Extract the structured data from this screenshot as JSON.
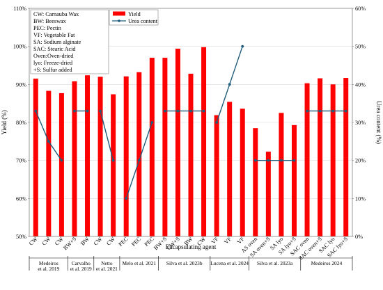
{
  "chart_data": {
    "type": "bar",
    "xlabel": "Encapsulating agent",
    "ylabel_left": "Yield (%)",
    "ylabel_right": "Urea content (%)",
    "ylim_left": [
      50,
      110
    ],
    "ylim_right": [
      0,
      60
    ],
    "yticks_left": [
      "50%",
      "60%",
      "70%",
      "80%",
      "90%",
      "100%",
      "110%"
    ],
    "yticks_right": [
      "0%",
      "10%",
      "20%",
      "30%",
      "40%",
      "50%",
      "60%"
    ],
    "categories": [
      "CW",
      "CW",
      "CW",
      "BW+S",
      "BW",
      "CW",
      "CW",
      "PEC",
      "PEC",
      "PEC",
      "BW+S",
      "CW+S",
      "BW",
      "CW",
      "VF",
      "VF",
      "VF",
      "AS oven",
      "SA oven+S",
      "SA lyo",
      "SA lyo+S",
      "SAC oven",
      "SAC oven+S",
      "SAC lyo",
      "SAC lyo+S"
    ],
    "series": [
      {
        "name": "Yield",
        "type": "bar",
        "color": "#ff0000",
        "values": [
          91.5,
          88.3,
          87.7,
          90.8,
          92.4,
          92.0,
          87.4,
          92.1,
          93.2,
          97.0,
          97.0,
          99.4,
          92.8,
          99.8,
          81.9,
          85.4,
          83.6,
          78.5,
          72.3,
          82.5,
          79.3,
          90.3,
          91.6,
          90.0,
          91.7
        ]
      },
      {
        "name": "Urea content",
        "type": "line",
        "color": "#1f5c7a",
        "segments": [
          [
            [
              0,
              33
            ],
            [
              1,
              25
            ],
            [
              2,
              20
            ]
          ],
          [
            [
              3,
              33
            ],
            [
              4,
              33
            ]
          ],
          [
            [
              5,
              33
            ],
            [
              6,
              20
            ]
          ],
          [
            [
              7,
              10
            ],
            [
              8,
              20
            ],
            [
              9,
              30
            ]
          ],
          [
            [
              10,
              33
            ],
            [
              11,
              33
            ],
            [
              12,
              33
            ],
            [
              13,
              33
            ]
          ],
          [
            [
              14,
              30
            ],
            [
              15,
              40
            ],
            [
              16,
              50
            ]
          ],
          [
            [
              17,
              20
            ],
            [
              18,
              20
            ],
            [
              19,
              20
            ],
            [
              20,
              20
            ]
          ],
          [
            [
              21,
              33
            ],
            [
              22,
              33
            ],
            [
              23,
              33
            ],
            [
              24,
              33
            ]
          ]
        ]
      }
    ],
    "groups": [
      {
        "label": "Medeiros et al. 2019",
        "line1": "Medeiros",
        "line2": "et al. 2019",
        "start": 0,
        "end": 2
      },
      {
        "label": "Carvalho et al. 2019",
        "line1": "Carvalho",
        "line2": "et al. 2019",
        "start": 3,
        "end": 4
      },
      {
        "label": "Netto et al. 2021",
        "line1": "Netto",
        "line2": "et al. 2021",
        "start": 5,
        "end": 6
      },
      {
        "label": "Melo et al. 2021",
        "line1": "Melo et al. 2021",
        "line2": "",
        "start": 7,
        "end": 9
      },
      {
        "label": "Silva et al. 2023b",
        "line1": "Silva et al. 2023b",
        "line2": "",
        "start": 10,
        "end": 13
      },
      {
        "label": "Lucena et al. 2024",
        "line1": "Lucena et al. 2024",
        "line2": "",
        "start": 14,
        "end": 16
      },
      {
        "label": "Silva et al. 2023a",
        "line1": "Silva et al. 2023a",
        "line2": "",
        "start": 17,
        "end": 20
      },
      {
        "label": "Medeiros 2024",
        "line1": "Medeiros 2024",
        "line2": "",
        "start": 21,
        "end": 24
      }
    ],
    "abbreviations": [
      "CW: Carnauba Wax",
      "BW: Beeswax",
      "PEC: Pectin",
      "VF: Vegetable Fat",
      "SA: Sodium alginate",
      "SAC: Stearic Acid",
      "Oven:Oven-dried",
      "lyo: Freeze-dried",
      "+S: Sulfur added"
    ],
    "legend_position": "top-left"
  }
}
